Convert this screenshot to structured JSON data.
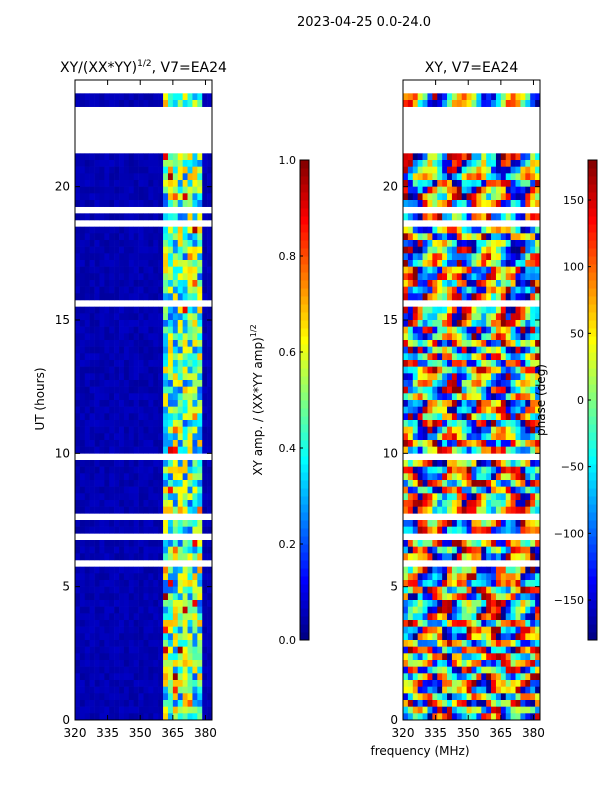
{
  "suptitle": "2023-04-25 0.0-24.0",
  "shared": {
    "ylabel": "UT (hours)",
    "xlabel": "frequency (MHz)",
    "colormap": "jet",
    "background": "#ffffff",
    "data_color": "#00008f"
  },
  "chart_data": [
    {
      "type": "heatmap",
      "title_main": "XY/(XX*YY)",
      "title_sup": "1/2",
      "title_rest": ", V7=EA24",
      "xlim": [
        320,
        383
      ],
      "ylim": [
        0,
        24
      ],
      "xticks": [
        320,
        335,
        350,
        365,
        380
      ],
      "yticks": [
        0,
        5,
        10,
        15,
        20
      ],
      "colorbar": {
        "label_main": "XY amp. / (XX*YY amp)",
        "label_sup": "1/2",
        "range": [
          0.0,
          1.0
        ],
        "ticks": [
          "0.0",
          "0.2",
          "0.4",
          "0.6",
          "0.8",
          "1.0"
        ]
      }
    },
    {
      "type": "heatmap",
      "title_main": "XY",
      "title_sup": "",
      "title_rest": ", V7=EA24",
      "xlim": [
        320,
        383
      ],
      "ylim": [
        0,
        24
      ],
      "xticks": [
        320,
        335,
        350,
        365,
        380
      ],
      "yticks": [
        0,
        5,
        10,
        15,
        20
      ],
      "colorbar": {
        "label_main": "phase (deg)",
        "label_sup": "",
        "range": [
          -180,
          180
        ],
        "ticks": [
          "−150",
          "−100",
          "−50",
          "0",
          "50",
          "100",
          "150"
        ],
        "tick_values": [
          -150,
          -100,
          -50,
          0,
          50,
          100,
          150
        ]
      }
    }
  ]
}
